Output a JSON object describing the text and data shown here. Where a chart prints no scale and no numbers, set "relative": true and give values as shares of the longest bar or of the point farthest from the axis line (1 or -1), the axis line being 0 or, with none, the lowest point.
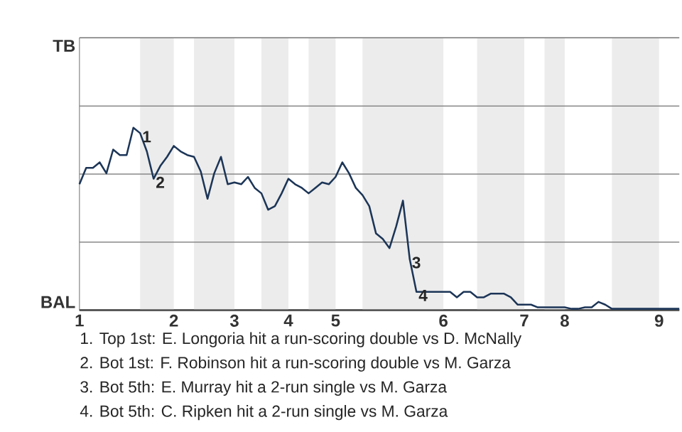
{
  "chart_data": {
    "type": "line",
    "relative": true,
    "categories": [
      "1",
      null,
      null,
      null,
      null,
      null,
      null,
      null,
      null,
      null,
      null,
      null,
      null,
      null,
      "2",
      null,
      null,
      null,
      null,
      null,
      null,
      null,
      null,
      "3",
      null,
      null,
      null,
      null,
      null,
      null,
      null,
      "4",
      null,
      null,
      null,
      null,
      null,
      null,
      "5",
      null,
      null,
      null,
      null,
      null,
      null,
      null,
      null,
      null,
      null,
      null,
      null,
      null,
      null,
      null,
      "6",
      null,
      null,
      null,
      null,
      null,
      null,
      null,
      null,
      null,
      null,
      null,
      "7",
      null,
      null,
      null,
      null,
      null,
      "8",
      null,
      null,
      null,
      null,
      null,
      null,
      null,
      null,
      null,
      null,
      null,
      null,
      null,
      "9",
      null,
      null,
      null
    ],
    "series": [
      {
        "color": "#1c3557",
        "values": [
          0.69,
          0.78,
          0.78,
          0.81,
          0.75,
          0.88,
          0.85,
          0.85,
          1,
          0.97,
          0.87,
          0.72,
          0.79,
          0.84,
          0.9,
          0.87,
          0.85,
          0.84,
          0.76,
          0.61,
          0.75,
          0.84,
          0.69,
          0.7,
          0.69,
          0.73,
          0.67,
          0.64,
          0.55,
          0.57,
          0.64,
          0.72,
          0.69,
          0.67,
          0.64,
          0.67,
          0.7,
          0.69,
          0.73,
          0.81,
          0.75,
          0.67,
          0.63,
          0.57,
          0.42,
          0.39,
          0.34,
          0.46,
          0.6,
          0.28,
          0.1,
          0.1,
          0.1,
          0.1,
          0.1,
          0.1,
          0.07,
          0.1,
          0.1,
          0.07,
          0.07,
          0.09,
          0.09,
          0.09,
          0.07,
          0.03,
          0.03,
          0.03,
          0.015,
          0.015,
          0.015,
          0.015,
          0.015,
          0.007,
          0.007,
          0.015,
          0.015,
          0.045,
          0.03,
          0.007,
          0.007,
          0.007,
          0.007,
          0.007,
          0.007,
          0.007,
          0.007,
          0.007,
          0.007,
          0.007
        ]
      }
    ],
    "ref_lines": [
      {
        "axis": "y",
        "value": 0,
        "label": "BAL",
        "color": "#555555"
      },
      {
        "axis": "y",
        "value": 0.373,
        "label": null,
        "color": "#888888"
      },
      {
        "axis": "y",
        "value": 0.746,
        "label": null,
        "color": "#888888"
      },
      {
        "axis": "y",
        "value": 1.119,
        "label": null,
        "color": "#888888"
      },
      {
        "axis": "y",
        "value": 1.493,
        "label": "TB",
        "color": "#888888"
      }
    ],
    "annotations": [
      {
        "text": "1",
        "y": 0.97
      },
      {
        "text": "2",
        "y": 0.72
      },
      {
        "text": "3",
        "y": 0.28
      },
      {
        "text": "4",
        "y": 0.1
      },
      "1. Top 1st: E. Longoria hit a run-scoring double vs D. McNally",
      "2. Bot 1st: F. Robinson hit a run-scoring double vs M. Garza",
      "3. Bot 5th: E. Murray hit a 2-run single vs M. Garza",
      "4. Bot 5th: C. Ripken hit a 2-run single vs M. Garza"
    ]
  }
}
